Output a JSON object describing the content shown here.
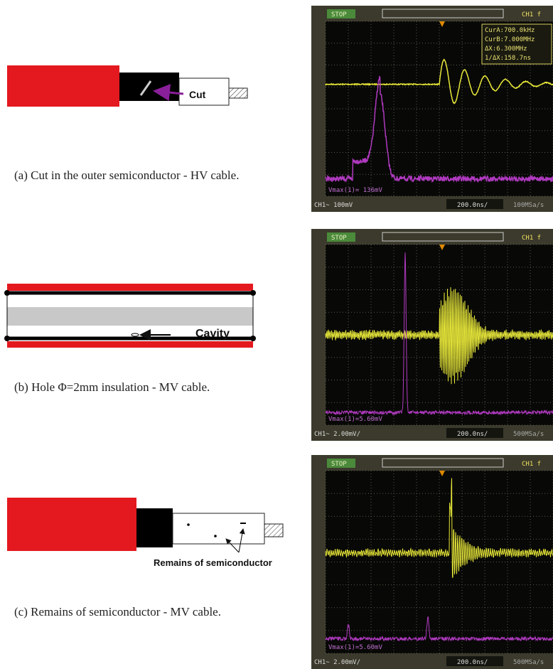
{
  "panels": [
    {
      "caption": "(a) Cut in the outer semiconductor - HV cable.",
      "label": "Cut",
      "scope": {
        "status": "STOP",
        "channel": "CH1 f",
        "cursors": [
          "CurA:700.0kHz",
          "CurB:7.000MHz",
          "ΔX:6.300MHz",
          "1/ΔX:158.7ns"
        ],
        "measure": "Vmax(1)= 136mV",
        "scale": "CH1~ 100mV",
        "timebase": "200.0ns/",
        "rate": "100MSa/s"
      }
    },
    {
      "caption": "(b) Hole Φ=2mm insulation - MV cable.",
      "label": "Cavity",
      "scope": {
        "status": "STOP",
        "channel": "CH1 f",
        "measure": "Vmax(1)=5.60mV",
        "scale": "CH1~ 2.00mV/",
        "timebase": "200.0ns/",
        "rate": "500MSa/s"
      }
    },
    {
      "caption": "(c) Remains of semiconductor - MV cable.",
      "label": "Remains of semiconductor",
      "scope": {
        "status": "STOP",
        "channel": "CH1 f",
        "measure": "Vmax(1)=5.60mV",
        "scale": "CH1~ 2.00mV/",
        "timebase": "200.0ns/",
        "rate": "500MSa/s"
      }
    }
  ]
}
